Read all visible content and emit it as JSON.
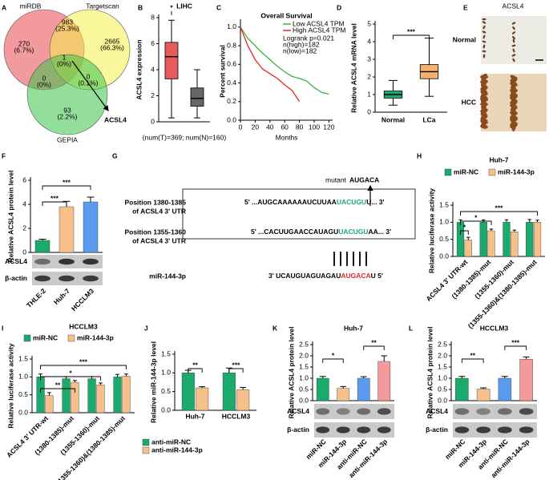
{
  "panel_labels": [
    "A",
    "B",
    "C",
    "D",
    "E",
    "F",
    "G",
    "H",
    "I",
    "J",
    "K",
    "L"
  ],
  "venn": {
    "sets": [
      "miRDB",
      "Targetscan",
      "GEPIA"
    ],
    "regions": [
      [
        "270",
        "(6.7%)"
      ],
      [
        "983",
        "(25.3%)"
      ],
      [
        "2665",
        "(66.3%)"
      ],
      [
        "1",
        "(0%)"
      ],
      [
        "0",
        "(0%)"
      ],
      [
        "0",
        "(0.1%)"
      ],
      [
        "93",
        "(2.2%)"
      ]
    ],
    "annotation": "ACSL4"
  },
  "ihc": {
    "title": "ACSL4",
    "rows": [
      "Normal",
      "HCC"
    ]
  },
  "sequence": {
    "mutant": {
      "label": "mutant",
      "seq": "AUGACA"
    },
    "rows": [
      {
        "label": [
          "Position 1380-1385",
          "of ACSL4 3' UTR"
        ],
        "seq": [
          "5' ...AUGCAAAAAAUCUUAA",
          "UACUGU",
          "U... 3'"
        ]
      },
      {
        "label": [
          "Position 1355-1360",
          "of ACSL4 3' UTR"
        ],
        "seq": [
          "5' ...CACUUGAACCAUAGU",
          "UACUGU",
          "AA... 3'"
        ]
      },
      {
        "label": [
          "miR-144-3p"
        ],
        "seq": [
          "3' UCAUGUAGUAGAU",
          "AUGACA",
          "U 5'"
        ]
      }
    ]
  },
  "chart_data": [
    {
      "type": "box",
      "title": "LIHC",
      "y_label": "ACSL4 expression",
      "x_label": "(num(T)=369; num(N)=160)",
      "ylim": [
        0,
        8
      ],
      "yticks": [
        0,
        2,
        4,
        6,
        8
      ],
      "annotations": [
        "*"
      ],
      "boxes": [
        {
          "color": "#e8595c",
          "min": 0.3,
          "q1": 3.3,
          "median": 5.0,
          "q3": 6.1,
          "max": 7.8
        },
        {
          "color": "#666666",
          "min": 0.3,
          "q1": 1.2,
          "median": 1.8,
          "q3": 2.6,
          "max": 4.0
        }
      ]
    },
    {
      "type": "line",
      "title": "Overall Survival",
      "y_label": "Percent survival",
      "x_label": "Months",
      "xlim": [
        0,
        125
      ],
      "xticks": [
        0,
        20,
        40,
        60,
        80,
        100,
        120
      ],
      "ylim": [
        0,
        1.05
      ],
      "yticks": [
        {
          "value": 0,
          "label": "0.0"
        },
        {
          "value": 0.2,
          "label": "0.2"
        },
        {
          "value": 0.4,
          "label": "0.4"
        },
        {
          "value": 0.6,
          "label": "0.6"
        },
        {
          "value": 0.8,
          "label": "0.8"
        },
        {
          "value": 1,
          "label": "1.0"
        }
      ],
      "annotations": [
        "Logrank p=0.021",
        "n(high)=182",
        "n(low)=182"
      ],
      "series": [
        {
          "name": "Low ACSL4 TPM",
          "color": "#3cb043",
          "x": [
            0,
            10,
            20,
            30,
            40,
            50,
            60,
            70,
            80,
            90,
            100,
            110,
            120
          ],
          "values": [
            1,
            0.88,
            0.8,
            0.72,
            0.65,
            0.58,
            0.52,
            0.47,
            0.45,
            0.42,
            0.35,
            0.3,
            0.28
          ]
        },
        {
          "name": "High ACSL4 TPM",
          "color": "#e8262a",
          "x": [
            0,
            10,
            20,
            30,
            40,
            50,
            60,
            70,
            80
          ],
          "values": [
            1,
            0.8,
            0.65,
            0.55,
            0.5,
            0.45,
            0.38,
            0.32,
            0.2
          ]
        }
      ]
    },
    {
      "type": "box",
      "y_label": "Relative ACSL4 mRNA level",
      "categories": [
        "Normal",
        "LCa"
      ],
      "ylim": [
        0,
        5
      ],
      "yticks": [
        0,
        1,
        2,
        3,
        4,
        5
      ],
      "annotations": [
        "***"
      ],
      "boxes": [
        {
          "color": "#1aaa6c",
          "min": 0.4,
          "q1": 0.8,
          "median": 1.0,
          "q3": 1.2,
          "max": 1.8
        },
        {
          "color": "#f6b26b",
          "min": 0.9,
          "q1": 1.9,
          "median": 2.3,
          "q3": 2.7,
          "max": 4.2
        }
      ]
    },
    {
      "type": "bar",
      "y_label": "Relative ACSL4 protein level",
      "categories": [
        "THLE-2",
        "Huh-7",
        "HCCLM3"
      ],
      "values": [
        1.0,
        3.8,
        4.2
      ],
      "errors": [
        0.1,
        0.45,
        0.4
      ],
      "colors": [
        "#1aaa6c",
        "#f6c08a",
        "#5b9bef"
      ],
      "ylim": [
        0,
        6
      ],
      "yticks": [
        0,
        2,
        4,
        6
      ],
      "annotations": [
        "***",
        "***"
      ],
      "blot_labels": [
        "ACSL4",
        "β-actin"
      ]
    },
    {
      "type": "bar",
      "title": "Huh-7",
      "y_label": "Relative luciferase activity",
      "legend": "top",
      "categories": [
        "ACSL4 3' UTR-wt",
        "(1380-1385)-mut",
        "(1355-1360)-mut",
        "(1355-1360)&(1380-1385)-mut"
      ],
      "ylim": [
        0,
        1.5
      ],
      "yticks": [
        {
          "value": 0,
          "label": "0.0"
        },
        {
          "value": 0.5,
          "label": "0.5"
        },
        {
          "value": 1,
          "label": "1.0"
        },
        {
          "value": 1.5,
          "label": "1.5"
        }
      ],
      "annotations": [
        "***",
        "*",
        "*"
      ],
      "series": [
        {
          "name": "miR-NC",
          "color": "#1aaa6c",
          "values": [
            1.0,
            1.0,
            1.0,
            1.0
          ],
          "errors": [
            0.07,
            0.07,
            0.07,
            0.08
          ]
        },
        {
          "name": "miR-144-3p",
          "color": "#f6c08a",
          "values": [
            0.48,
            0.75,
            0.72,
            1.0
          ],
          "errors": [
            0.08,
            0.05,
            0.05,
            0.06
          ]
        }
      ]
    },
    {
      "type": "bar",
      "title": "HCCLM3",
      "y_label": "Relative luciferase activity",
      "legend": "top",
      "categories": [
        "ACSL4 3' UTR-wt",
        "(1380-1385)-mut",
        "(1355-1360)-mut",
        "(1355-1360)&(1380-1385)-mut"
      ],
      "ylim": [
        0,
        1.5
      ],
      "yticks": [
        {
          "value": 0,
          "label": "0.0"
        },
        {
          "value": 0.5,
          "label": "0.5"
        },
        {
          "value": 1,
          "label": "1.0"
        },
        {
          "value": 1.5,
          "label": "1.5"
        }
      ],
      "annotations": [
        "***",
        "*",
        "**"
      ],
      "series": [
        {
          "name": "miR-NC",
          "color": "#1aaa6c",
          "values": [
            1.0,
            0.95,
            0.95,
            1.0
          ],
          "errors": [
            0.08,
            0.06,
            0.06,
            0.07
          ]
        },
        {
          "name": "miR-144-3p",
          "color": "#f6c08a",
          "values": [
            0.48,
            0.85,
            0.78,
            1.02
          ],
          "errors": [
            0.08,
            0.05,
            0.05,
            0.06
          ]
        }
      ]
    },
    {
      "type": "bar",
      "y_label": "Relative miR-144-3p level",
      "legend": "bottom",
      "categories": [
        "Huh-7",
        "HCCLM3"
      ],
      "ylim": [
        0,
        1.5
      ],
      "yticks": [
        {
          "value": 0,
          "label": "0.0"
        },
        {
          "value": 0.5,
          "label": "0.5"
        },
        {
          "value": 1,
          "label": "1.0"
        },
        {
          "value": 1.5,
          "label": "1.5"
        }
      ],
      "annotations": [
        "**",
        "***"
      ],
      "series": [
        {
          "name": "anti-miR-NC",
          "color": "#1aaa6c",
          "values": [
            1.0,
            1.0
          ],
          "errors": [
            0.07,
            0.13
          ]
        },
        {
          "name": "anti-miR-144-3p",
          "color": "#f6c08a",
          "values": [
            0.6,
            0.55
          ],
          "errors": [
            0.03,
            0.06
          ]
        }
      ]
    },
    {
      "type": "bar",
      "title": "Huh-7",
      "y_label": "Relative ACSL4 protein level",
      "categories": [
        "miR-NC",
        "miR-144-3p",
        "anti-miR-NC",
        "anti-miR-144-3p"
      ],
      "values": [
        1.0,
        0.55,
        1.0,
        1.75
      ],
      "errors": [
        0.08,
        0.08,
        0.07,
        0.25
      ],
      "colors": [
        "#1aaa6c",
        "#f6c08a",
        "#5b9bef",
        "#f59a9a"
      ],
      "ylim": [
        0,
        2.5
      ],
      "yticks": [
        {
          "value": 0,
          "label": "0.0"
        },
        {
          "value": 0.5,
          "label": "0.5"
        },
        {
          "value": 1,
          "label": "1.0"
        },
        {
          "value": 1.5,
          "label": "1.5"
        },
        {
          "value": 2,
          "label": "2.0"
        },
        {
          "value": 2.5,
          "label": "2.5"
        }
      ],
      "annotations": [
        "*",
        "**"
      ],
      "blot_labels": [
        "ACSL4",
        "β-actin"
      ]
    },
    {
      "type": "bar",
      "title": "HCCLM3",
      "y_label": "Relative ACSL4 protein level",
      "categories": [
        "miR-NC",
        "miR-144-3p",
        "anti-miR-NC",
        "anti-miR-144-3p"
      ],
      "values": [
        1.0,
        0.52,
        1.0,
        1.85
      ],
      "errors": [
        0.08,
        0.05,
        0.08,
        0.1
      ],
      "colors": [
        "#1aaa6c",
        "#f6c08a",
        "#5b9bef",
        "#f59a9a"
      ],
      "ylim": [
        0,
        2.5
      ],
      "yticks": [
        {
          "value": 0,
          "label": "0.0"
        },
        {
          "value": 0.5,
          "label": "0.5"
        },
        {
          "value": 1,
          "label": "1.0"
        },
        {
          "value": 1.5,
          "label": "1.5"
        },
        {
          "value": 2,
          "label": "2.0"
        },
        {
          "value": 2.5,
          "label": "2.5"
        }
      ],
      "annotations": [
        "**",
        "***"
      ],
      "blot_labels": [
        "ACSL4",
        "β-actin"
      ]
    }
  ]
}
